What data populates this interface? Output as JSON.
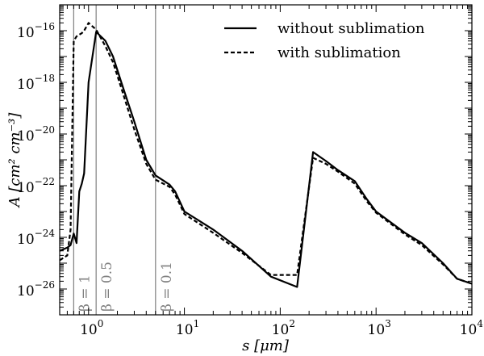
{
  "chart_data": {
    "type": "line",
    "xlabel": "s [μm]",
    "ylabel": "A [cm² cm⁻³]",
    "xscale": "log",
    "yscale": "log",
    "xlim": [
      0.5,
      10000
    ],
    "ylim": [
      1e-27,
      1e-15
    ],
    "x_ticks": [
      {
        "value": 1,
        "base": "10",
        "exp": "0"
      },
      {
        "value": 10,
        "base": "10",
        "exp": "1"
      },
      {
        "value": 100,
        "base": "10",
        "exp": "2"
      },
      {
        "value": 1000,
        "base": "10",
        "exp": "3"
      },
      {
        "value": 10000,
        "base": "10",
        "exp": "4"
      }
    ],
    "y_ticks": [
      {
        "value": 1e-16,
        "base": "10",
        "exp": "−16"
      },
      {
        "value": 1e-18,
        "base": "10",
        "exp": "−18"
      },
      {
        "value": 1e-20,
        "base": "10",
        "exp": "−20"
      },
      {
        "value": 1e-22,
        "base": "10",
        "exp": "−22"
      },
      {
        "value": 1e-24,
        "base": "10",
        "exp": "−24"
      },
      {
        "value": 1e-26,
        "base": "10",
        "exp": "−26"
      }
    ],
    "series": [
      {
        "name": "without sublimation",
        "style": "solid",
        "x": [
          0.5,
          0.6,
          0.65,
          0.7,
          0.75,
          0.8,
          0.85,
          0.9,
          1.0,
          1.2,
          1.5,
          1.8,
          2.2,
          3.0,
          4.0,
          5.0,
          7.0,
          8.0,
          10,
          20,
          40,
          80,
          150,
          220,
          300,
          400,
          600,
          800,
          1000,
          2000,
          3000,
          5000,
          7000,
          10000
        ],
        "y": [
          3e-25,
          4e-25,
          5e-25,
          1.4e-24,
          6e-25,
          6e-23,
          1.2e-22,
          3e-22,
          1e-18,
          9e-17,
          4e-17,
          1e-17,
          1e-18,
          3e-20,
          1e-21,
          2.5e-22,
          1.1e-22,
          6e-23,
          1e-23,
          2e-24,
          3e-25,
          3e-26,
          1.2e-26,
          2e-21,
          9e-22,
          4e-22,
          1.5e-22,
          3e-23,
          1e-23,
          1.5e-24,
          6e-25,
          1e-25,
          2.5e-26,
          1.6e-26
        ]
      },
      {
        "name": "with sublimation",
        "style": "dashed",
        "x": [
          0.5,
          0.6,
          0.65,
          0.7,
          0.75,
          0.8,
          0.85,
          0.9,
          1.0,
          1.2,
          1.5,
          1.8,
          2.2,
          3.0,
          4.0,
          5.0,
          7.0,
          8.0,
          10,
          20,
          40,
          80,
          150,
          220,
          300,
          400,
          600,
          800,
          1000,
          2000,
          3000,
          5000,
          7000,
          10000
        ],
        "y": [
          1.3e-25,
          2e-25,
          2e-24,
          4e-17,
          6e-17,
          7e-17,
          8e-17,
          1e-16,
          2e-16,
          1.1e-16,
          2.5e-17,
          6e-18,
          6e-19,
          1.5e-20,
          7e-22,
          1.7e-22,
          9e-23,
          4.5e-23,
          8e-24,
          1.5e-24,
          2.5e-25,
          3.5e-26,
          3.5e-26,
          1.2e-21,
          7e-22,
          3.5e-22,
          1.2e-22,
          2.5e-23,
          9e-24,
          1.3e-24,
          5e-25,
          9e-26,
          2.5e-26,
          1.6e-26
        ]
      }
    ],
    "vlines": [
      {
        "x": 0.7,
        "label": "β = 1"
      },
      {
        "x": 1.2,
        "label": "β = 0.5"
      },
      {
        "x": 5.0,
        "label": "β = 0.1"
      }
    ],
    "legend_position": "top-right",
    "grid": false
  }
}
